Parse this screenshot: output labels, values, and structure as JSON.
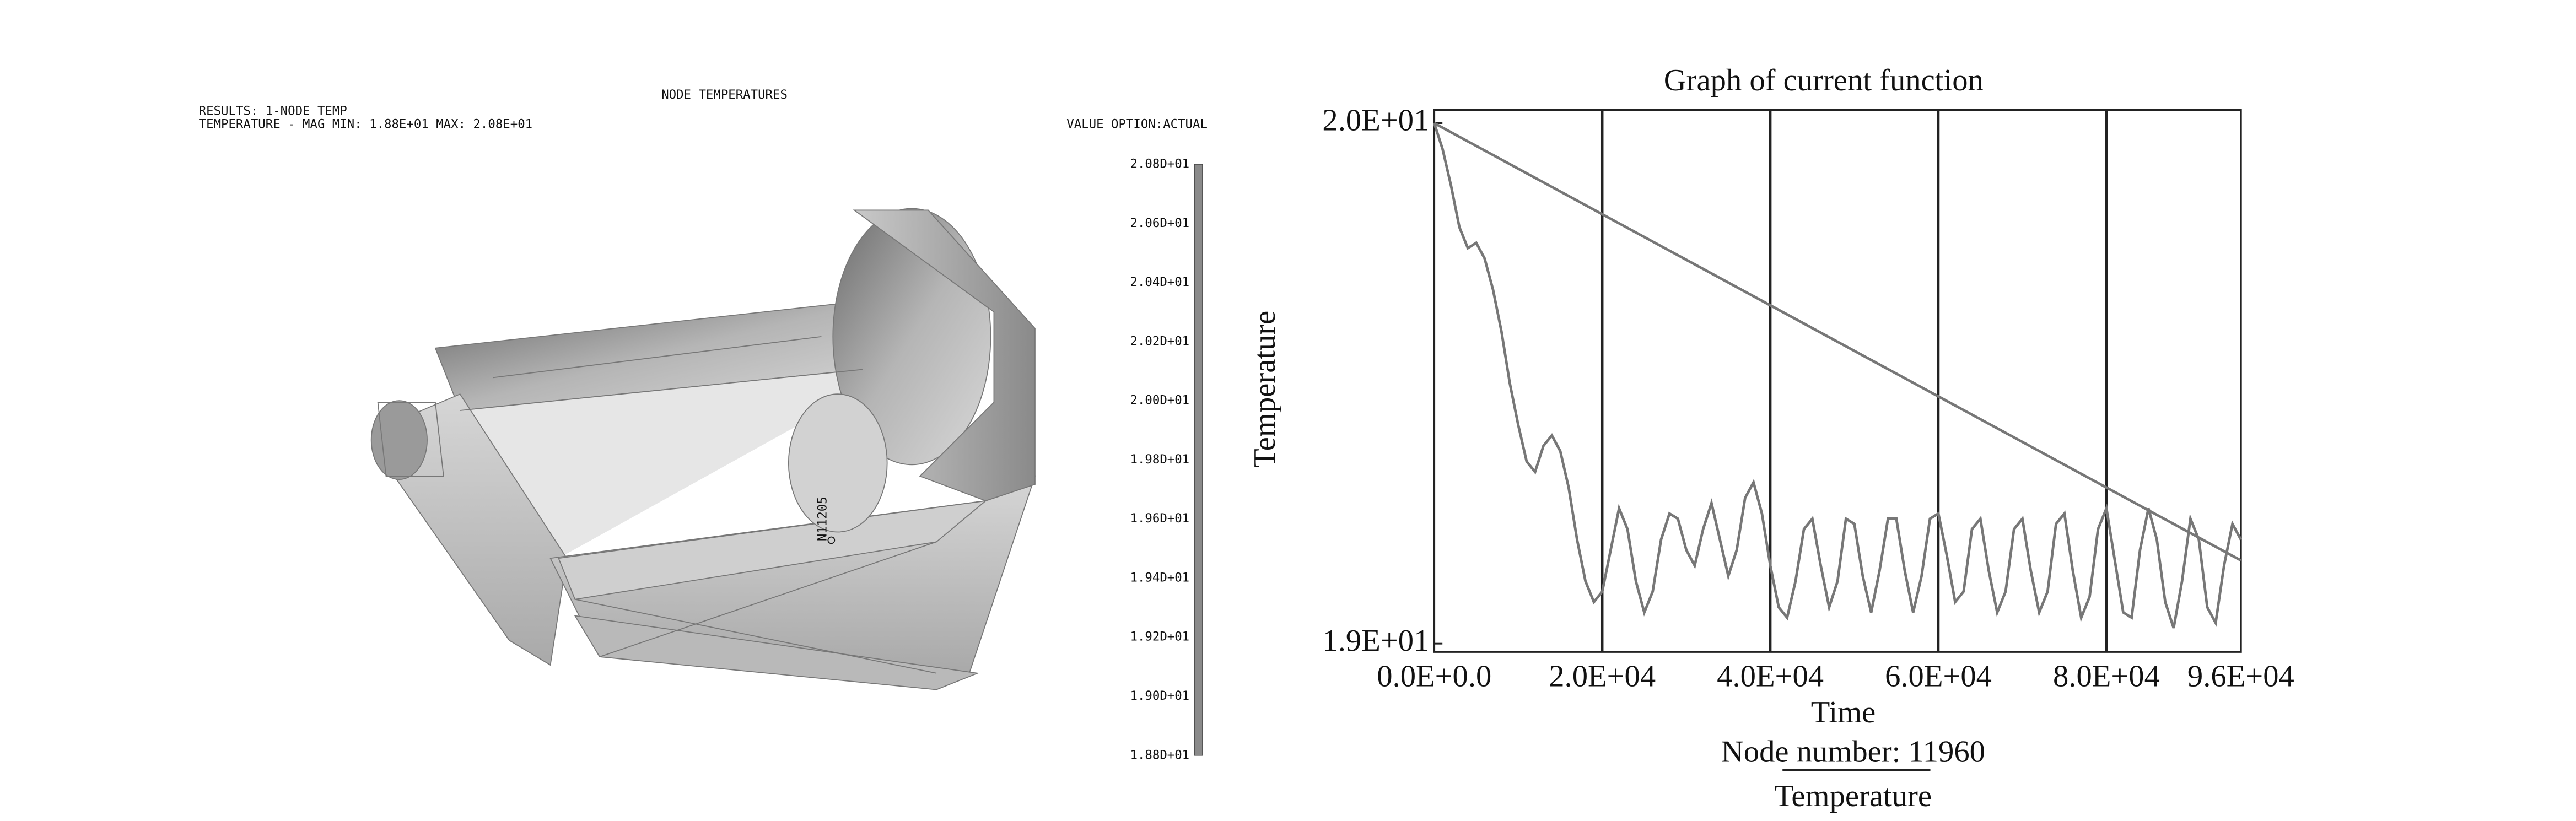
{
  "fea_panel": {
    "title": "NODE TEMPERATURES",
    "results": "RESULTS: 1-NODE TEMP",
    "range": "TEMPERATURE - MAG MIN: 1.88E+01 MAX: 2.08E+01",
    "value_option": "VALUE OPTION:ACTUAL",
    "node_label": "N11205",
    "colorbar_labels": [
      "2.08D+01",
      "2.06D+01",
      "2.04D+01",
      "2.02D+01",
      "2.00D+01",
      "1.98D+01",
      "1.96D+01",
      "1.94D+01",
      "1.92D+01",
      "1.90D+01",
      "1.88D+01"
    ]
  },
  "chart_data": {
    "type": "line",
    "title": "Graph of current function",
    "x_label": "Time",
    "y_label": "Temperature",
    "subtitle": "Node number: 11960",
    "xlim": [
      0,
      96000
    ],
    "ylim": [
      19,
      20
    ],
    "xticks": [
      {
        "value": 0,
        "label": "0.0E+0.0"
      },
      {
        "value": 20000,
        "label": "2.0E+04"
      },
      {
        "value": 40000,
        "label": "4.0E+04"
      },
      {
        "value": 60000,
        "label": "6.0E+04"
      },
      {
        "value": 80000,
        "label": "8.0E+04"
      },
      {
        "value": 96000,
        "label": "9.6E+04"
      }
    ],
    "yticks": [
      {
        "value": 19,
        "label": "1.9E+01"
      },
      {
        "value": 20,
        "label": "2.0E+01"
      }
    ],
    "grid_x": [
      20000,
      40000,
      60000,
      80000
    ],
    "series": [
      {
        "name": "Temperature",
        "color": "#777777",
        "x": [
          0,
          1000,
          2000,
          3000,
          4000,
          5000,
          6000,
          7000,
          8000,
          9000,
          10000,
          11000,
          12000,
          13000,
          14000,
          15000,
          16000,
          17000,
          18000,
          19000,
          20000,
          21000,
          22000,
          23000,
          24000,
          25000,
          26000,
          27000,
          28000,
          29000,
          30000,
          31000,
          32000,
          33000,
          34000,
          35000,
          36000,
          37000,
          38000,
          39000,
          40000,
          41000,
          42000,
          43000,
          44000,
          45000,
          46000,
          47000,
          48000,
          49000,
          50000,
          51000,
          52000,
          53000,
          54000,
          55000,
          56000,
          57000,
          58000,
          59000,
          60000,
          61000,
          62000,
          63000,
          64000,
          65000,
          66000,
          67000,
          68000,
          69000,
          70000,
          71000,
          72000,
          73000,
          74000,
          75000,
          76000,
          77000,
          78000,
          79000,
          80000,
          81000,
          82000,
          83000,
          84000,
          85000,
          86000,
          87000,
          88000,
          89000,
          90000,
          91000,
          92000,
          93000,
          94000,
          95000,
          96000
        ],
        "values": [
          20.0,
          19.95,
          19.88,
          19.8,
          19.76,
          19.77,
          19.74,
          19.68,
          19.6,
          19.5,
          19.42,
          19.35,
          19.33,
          19.38,
          19.4,
          19.37,
          19.3,
          19.2,
          19.12,
          19.08,
          19.1,
          19.18,
          19.26,
          19.22,
          19.12,
          19.06,
          19.1,
          19.2,
          19.25,
          19.24,
          19.18,
          19.15,
          19.22,
          19.27,
          19.2,
          19.13,
          19.18,
          19.28,
          19.31,
          19.25,
          19.15,
          19.07,
          19.05,
          19.12,
          19.22,
          19.24,
          19.15,
          19.07,
          19.12,
          19.24,
          19.23,
          19.13,
          19.06,
          19.14,
          19.24,
          19.24,
          19.14,
          19.06,
          19.13,
          19.24,
          19.25,
          19.17,
          19.08,
          19.1,
          19.22,
          19.24,
          19.14,
          19.06,
          19.1,
          19.22,
          19.24,
          19.14,
          19.06,
          19.1,
          19.23,
          19.25,
          19.14,
          19.05,
          19.09,
          19.22,
          19.26,
          19.16,
          19.06,
          19.05,
          19.18,
          19.26,
          19.2,
          19.08,
          19.03,
          19.12,
          19.24,
          19.2,
          19.07,
          19.04,
          19.15,
          19.23,
          19.2
        ]
      },
      {
        "color": "#777777",
        "x": [
          0,
          96000
        ],
        "values": [
          20.0,
          19.16
        ]
      }
    ]
  }
}
